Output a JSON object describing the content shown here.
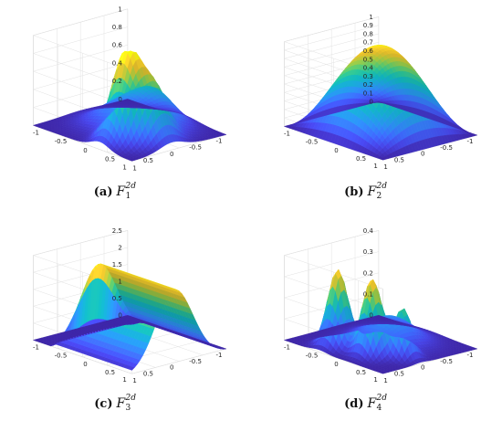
{
  "figure": {
    "palette": [
      "#3e26a8",
      "#4744e8",
      "#3d6bff",
      "#2d8cf2",
      "#1ba3da",
      "#10b4be",
      "#27c29a",
      "#61c96a",
      "#a8c73d",
      "#e0bb2c",
      "#fbd32b",
      "#f9fb0e"
    ]
  },
  "chart_data": [
    {
      "id": "a",
      "type": "surface",
      "caption": {
        "letter": "(a)",
        "var": "F",
        "sub": "1",
        "sup": "2d"
      },
      "xlim": [
        -1,
        1
      ],
      "ylim": [
        -1,
        1
      ],
      "zlim": [
        0,
        1
      ],
      "x_ticks": [
        "-1",
        "-0.5",
        "0",
        "0.5",
        "1"
      ],
      "y_ticks": [
        "1",
        "0.5",
        "0",
        "-0.5",
        "-1"
      ],
      "z_ticks": [
        "0",
        "0.2",
        "0.4",
        "0.6",
        "0.8",
        "1"
      ],
      "grid": true,
      "surface": {
        "function": "mixture",
        "components": [
          {
            "amplitude": 0.95,
            "cx": 0.35,
            "cy": 0.45,
            "sx": 0.18,
            "sy": 0.25
          },
          {
            "amplitude": 0.55,
            "cx": 0.65,
            "cy": 0.15,
            "sx": 0.18,
            "sy": 0.25
          },
          {
            "amplitude": 0.35,
            "cx": 0.15,
            "cy": -0.4,
            "sx": 0.3,
            "sy": 0.3
          },
          {
            "amplitude": 0.25,
            "cx": -0.2,
            "cy": 0.0,
            "sx": 0.35,
            "sy": 0.35
          }
        ],
        "z_min": 0.0,
        "z_max": 0.95
      }
    },
    {
      "id": "b",
      "type": "surface",
      "caption": {
        "letter": "(b)",
        "var": "F",
        "sub": "2",
        "sup": "2d"
      },
      "xlim": [
        -1,
        1
      ],
      "ylim": [
        -1,
        1
      ],
      "zlim": [
        0,
        1
      ],
      "x_ticks": [
        "-1",
        "-0.5",
        "0",
        "0.5",
        "1"
      ],
      "y_ticks": [
        "1",
        "0.5",
        "0",
        "-0.5",
        "-1"
      ],
      "z_ticks": [
        "0",
        "0.1",
        "0.2",
        "0.3",
        "0.4",
        "0.5",
        "0.6",
        "0.7",
        "0.8",
        "0.9",
        "1"
      ],
      "grid": true,
      "surface": {
        "function": "cosine_bump",
        "z_min": 0.0,
        "z_max": 1.0
      }
    },
    {
      "id": "c",
      "type": "surface",
      "caption": {
        "letter": "(c)",
        "var": "F",
        "sub": "3",
        "sup": "2d"
      },
      "xlim": [
        -1,
        1
      ],
      "ylim": [
        -1,
        1
      ],
      "zlim": [
        0,
        2.5
      ],
      "x_ticks": [
        "-1",
        "-0.5",
        "0",
        "0.5",
        "1"
      ],
      "y_ticks": [
        "1",
        "0.5",
        "0",
        "-0.5",
        "-1"
      ],
      "z_ticks": [
        "0",
        "0.5",
        "1",
        "1.5",
        "2",
        "2.5"
      ],
      "grid": true,
      "surface": {
        "function": "cylinder_bump",
        "z_min": 0.0,
        "z_max": 2.2
      }
    },
    {
      "id": "d",
      "type": "surface",
      "caption": {
        "letter": "(d)",
        "var": "F",
        "sub": "4",
        "sup": "2d"
      },
      "xlim": [
        -1,
        1
      ],
      "ylim": [
        -1,
        1
      ],
      "zlim": [
        0,
        0.4
      ],
      "x_ticks": [
        "-1",
        "-0.5",
        "0",
        "0.5",
        "1"
      ],
      "y_ticks": [
        "1",
        "0.5",
        "0",
        "-0.5",
        "-1"
      ],
      "z_ticks": [
        "0",
        "0.1",
        "0.2",
        "0.3",
        "0.4"
      ],
      "grid": true,
      "surface": {
        "function": "mixture",
        "components": [
          {
            "amplitude": 0.36,
            "cx": -0.3,
            "cy": 0.6,
            "sx": 0.15,
            "sy": 0.15
          },
          {
            "amplitude": 0.35,
            "cx": 0.3,
            "cy": 0.5,
            "sx": 0.15,
            "sy": 0.15
          },
          {
            "amplitude": 0.22,
            "cx": 0.65,
            "cy": 0.2,
            "sx": 0.13,
            "sy": 0.13
          },
          {
            "amplitude": 0.12,
            "cx": 0.0,
            "cy": -0.2,
            "sx": 0.35,
            "sy": 0.35
          }
        ],
        "z_min": 0.0,
        "z_max": 0.38
      }
    }
  ]
}
